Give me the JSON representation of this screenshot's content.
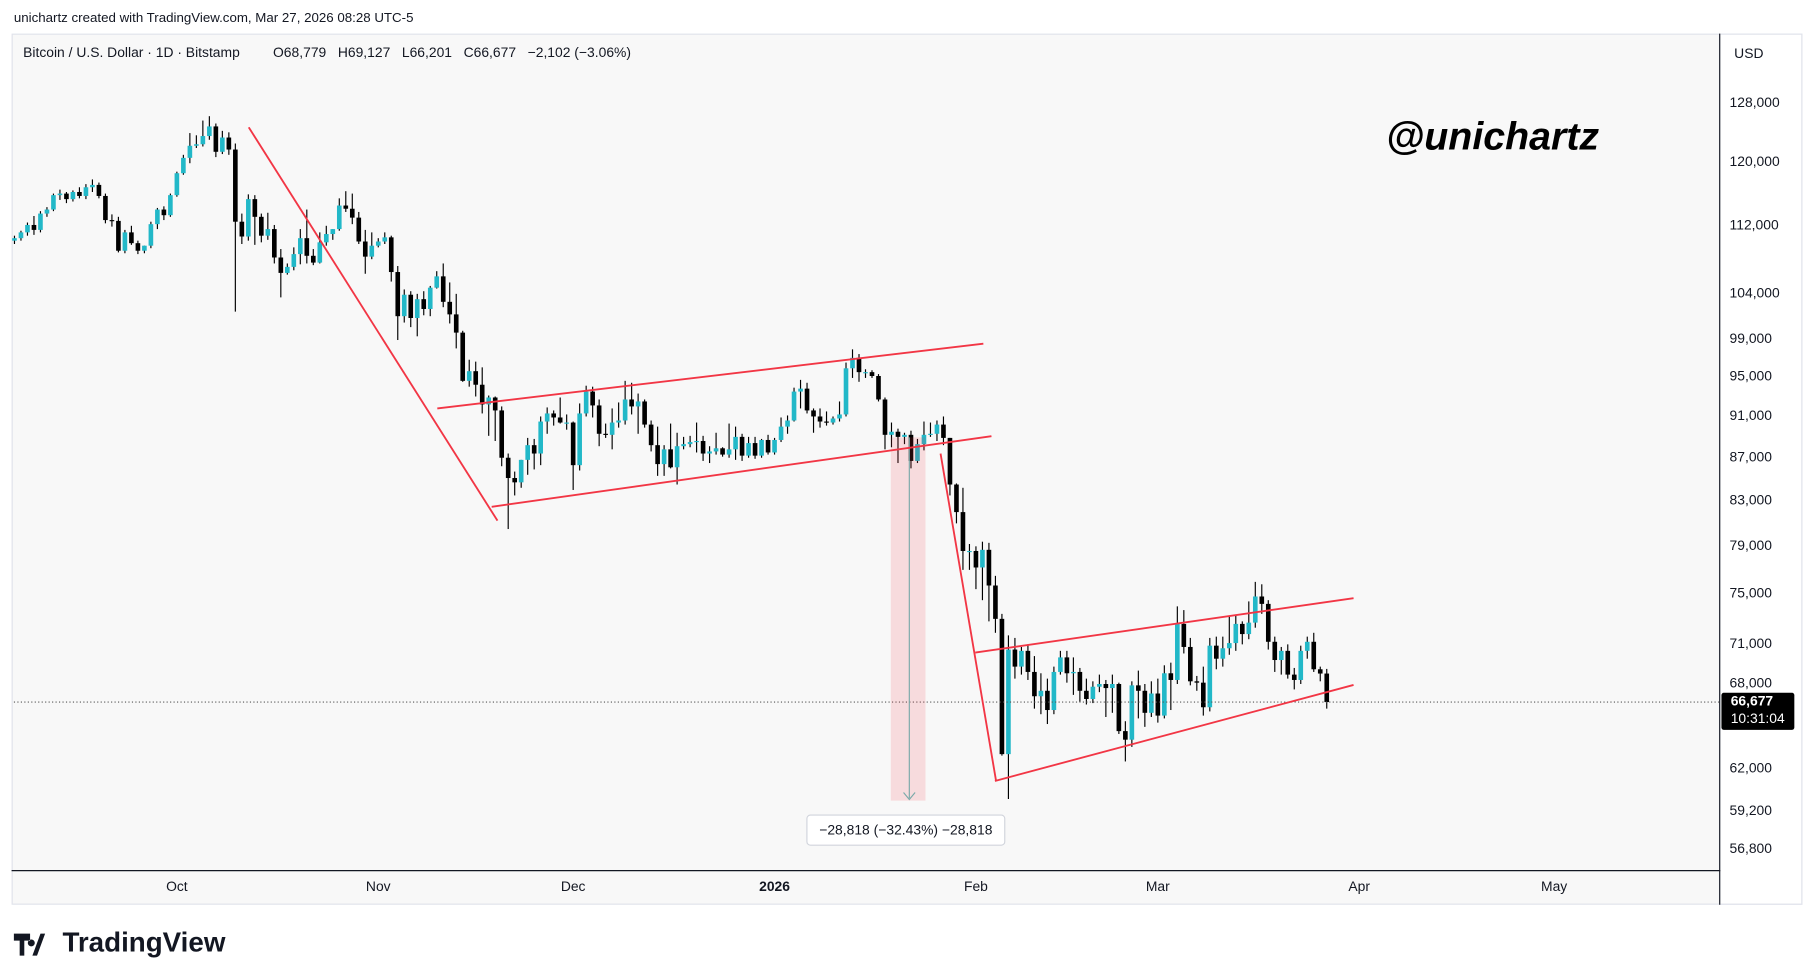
{
  "header": "unichartz created with TradingView.com, Mar 27, 2026 08:28 UTC-5",
  "brand": "TradingView",
  "chart_data": {
    "type": "candlestick",
    "symbol": "Bitcoin / U.S. Dollar · 1D · Bitstamp",
    "legend_values": [
      "O68,779",
      "H69,127",
      "L66,201",
      "C66,677",
      "−2,102 (−3.06%)"
    ],
    "currency": "USD",
    "watermark": "@unichartz",
    "measure_label": "−28,818 (−32.43%) −28,818",
    "last_price": {
      "value": 66677,
      "label": "66,677"
    },
    "countdown": "10:31:04",
    "up_color": "#22b8c8",
    "down_color": "#000000",
    "log_scale": true,
    "grid": false,
    "xlim": [
      -0.09,
      262.4
    ],
    "ylim": [
      55530,
      137900
    ],
    "yticks": [
      {
        "value": 128000,
        "label": "128,000"
      },
      {
        "value": 120000,
        "label": "120,000"
      },
      {
        "value": 112000,
        "label": "112,000"
      },
      {
        "value": 104000,
        "label": "104,000"
      },
      {
        "value": 99000,
        "label": "99,000"
      },
      {
        "value": 95000,
        "label": "95,000"
      },
      {
        "value": 91000,
        "label": "91,000"
      },
      {
        "value": 87000,
        "label": "87,000"
      },
      {
        "value": 83000,
        "label": "83,000"
      },
      {
        "value": 79000,
        "label": "79,000"
      },
      {
        "value": 75000,
        "label": "75,000"
      },
      {
        "value": 71000,
        "label": "71,000"
      },
      {
        "value": 68000,
        "label": "68,000"
      },
      {
        "value": 62000,
        "label": "62,000"
      },
      {
        "value": 59200,
        "label": "59,200"
      },
      {
        "value": 56800,
        "label": "56,800"
      }
    ],
    "xticks": [
      {
        "value": 25,
        "label": "Oct"
      },
      {
        "value": 56,
        "label": "Nov"
      },
      {
        "value": 86,
        "label": "Dec"
      },
      {
        "value": 117,
        "label": "2026"
      },
      {
        "value": 148,
        "label": "Feb"
      },
      {
        "value": 176,
        "label": "Mar"
      },
      {
        "value": 207,
        "label": "Apr"
      },
      {
        "value": 237,
        "label": "May"
      }
    ],
    "candles": [
      [
        110200,
        110800,
        109800,
        110500
      ],
      [
        110500,
        111400,
        110200,
        111200
      ],
      [
        111200,
        112400,
        110800,
        112100
      ],
      [
        112100,
        113200,
        110900,
        111500
      ],
      [
        111500,
        113800,
        111200,
        113500
      ],
      [
        113500,
        114300,
        113100,
        114000
      ],
      [
        114000,
        116000,
        113800,
        115800
      ],
      [
        115800,
        116500,
        115200,
        116000
      ],
      [
        116000,
        116200,
        114800,
        115300
      ],
      [
        115300,
        116400,
        115000,
        116200
      ],
      [
        116200,
        116800,
        115400,
        115700
      ],
      [
        115700,
        117200,
        115300,
        116800
      ],
      [
        116800,
        117800,
        116200,
        117100
      ],
      [
        117100,
        117400,
        115400,
        115700
      ],
      [
        115700,
        116000,
        112300,
        112700
      ],
      [
        112700,
        113400,
        111900,
        112600
      ],
      [
        112600,
        113100,
        108800,
        109000
      ],
      [
        109000,
        111500,
        108700,
        111200
      ],
      [
        111200,
        112000,
        109700,
        109900
      ],
      [
        109900,
        110200,
        108600,
        109000
      ],
      [
        109000,
        109600,
        108700,
        109600
      ],
      [
        109600,
        112500,
        109300,
        112200
      ],
      [
        112200,
        114200,
        111600,
        114000
      ],
      [
        114000,
        114400,
        112700,
        113300
      ],
      [
        113300,
        116000,
        113100,
        115800
      ],
      [
        115800,
        118800,
        115600,
        118600
      ],
      [
        118600,
        121000,
        118400,
        120600
      ],
      [
        120600,
        123900,
        119900,
        122200
      ],
      [
        122200,
        123600,
        121900,
        122400
      ],
      [
        122400,
        125600,
        122100,
        123500
      ],
      [
        123500,
        126200,
        123000,
        124800
      ],
      [
        124800,
        125200,
        120700,
        121400
      ],
      [
        121400,
        124200,
        121100,
        123300
      ],
      [
        123300,
        124000,
        121000,
        121700
      ],
      [
        121700,
        122500,
        102000,
        112500
      ],
      [
        112500,
        113500,
        109800,
        110700
      ],
      [
        110700,
        115900,
        110200,
        115300
      ],
      [
        115300,
        115800,
        109700,
        113100
      ],
      [
        113100,
        113500,
        110000,
        110800
      ],
      [
        110800,
        113600,
        110300,
        111600
      ],
      [
        111600,
        112100,
        107500,
        108200
      ],
      [
        108200,
        109200,
        103600,
        106400
      ],
      [
        106400,
        107500,
        106200,
        107100
      ],
      [
        107100,
        109400,
        106700,
        108600
      ],
      [
        108600,
        111600,
        107400,
        110500
      ],
      [
        110500,
        114000,
        107500,
        108400
      ],
      [
        108400,
        109200,
        107300,
        107600
      ],
      [
        107600,
        111200,
        107500,
        110000
      ],
      [
        110000,
        112000,
        109600,
        111000
      ],
      [
        111000,
        111600,
        110300,
        111600
      ],
      [
        111600,
        115400,
        111400,
        114500
      ],
      [
        114500,
        116300,
        113700,
        114100
      ],
      [
        114100,
        116000,
        112200,
        113000
      ],
      [
        113000,
        113700,
        109800,
        110100
      ],
      [
        110100,
        111500,
        106300,
        108300
      ],
      [
        108300,
        111200,
        108000,
        109600
      ],
      [
        109600,
        110500,
        109400,
        110100
      ],
      [
        110100,
        111200,
        109800,
        110600
      ],
      [
        110600,
        110800,
        105400,
        106500
      ],
      [
        106500,
        107200,
        98900,
        101500
      ],
      [
        101500,
        104500,
        100800,
        103900
      ],
      [
        103900,
        104300,
        100300,
        101300
      ],
      [
        101300,
        104000,
        99300,
        103400
      ],
      [
        103400,
        104300,
        101600,
        102300
      ],
      [
        102300,
        104900,
        101500,
        104700
      ],
      [
        104700,
        106600,
        104600,
        106000
      ],
      [
        106000,
        107500,
        102500,
        103100
      ],
      [
        103100,
        105300,
        100700,
        101700
      ],
      [
        101700,
        104000,
        98000,
        99700
      ],
      [
        99700,
        99900,
        94500,
        94600
      ],
      [
        94600,
        96800,
        94000,
        95600
      ],
      [
        95600,
        96600,
        93000,
        94200
      ],
      [
        94200,
        96000,
        91300,
        92200
      ],
      [
        92200,
        93100,
        89100,
        92900
      ],
      [
        92900,
        93000,
        88600,
        91600
      ],
      [
        91600,
        92000,
        86200,
        87000
      ],
      [
        87000,
        87400,
        80500,
        85100
      ],
      [
        85100,
        85700,
        83500,
        84700
      ],
      [
        84700,
        86800,
        84200,
        86800
      ],
      [
        86800,
        88900,
        85400,
        88200
      ],
      [
        88200,
        88800,
        85900,
        87400
      ],
      [
        87400,
        91000,
        86300,
        90500
      ],
      [
        90500,
        91900,
        89300,
        91300
      ],
      [
        91300,
        91600,
        90100,
        90900
      ],
      [
        90900,
        92900,
        90300,
        90400
      ],
      [
        90400,
        91200,
        89700,
        90400
      ],
      [
        90400,
        90500,
        84000,
        86300
      ],
      [
        86300,
        92300,
        85800,
        91300
      ],
      [
        91300,
        94100,
        91000,
        93500
      ],
      [
        93500,
        94000,
        90900,
        92100
      ],
      [
        92100,
        92700,
        88100,
        89300
      ],
      [
        89300,
        90300,
        88900,
        89200
      ],
      [
        89200,
        91800,
        87800,
        90400
      ],
      [
        90400,
        92400,
        89900,
        90600
      ],
      [
        90600,
        94600,
        90200,
        92700
      ],
      [
        92700,
        94400,
        91200,
        92000
      ],
      [
        92000,
        93300,
        89300,
        92500
      ],
      [
        92500,
        92700,
        89900,
        90200
      ],
      [
        90200,
        90600,
        87600,
        88200
      ],
      [
        88200,
        90000,
        85300,
        86400
      ],
      [
        86400,
        88200,
        85300,
        87800
      ],
      [
        87800,
        90300,
        86000,
        86100
      ],
      [
        86100,
        89400,
        84500,
        88100
      ],
      [
        88100,
        89000,
        87800,
        88300
      ],
      [
        88300,
        89100,
        88000,
        88500
      ],
      [
        88500,
        90400,
        87500,
        88600
      ],
      [
        88600,
        89100,
        86700,
        87400
      ],
      [
        87400,
        88100,
        86500,
        87600
      ],
      [
        87600,
        89400,
        87300,
        87900
      ],
      [
        87900,
        88000,
        87100,
        87300
      ],
      [
        87300,
        90300,
        87000,
        87800
      ],
      [
        87800,
        90000,
        86800,
        89000
      ],
      [
        89000,
        89300,
        86700,
        87200
      ],
      [
        87200,
        89000,
        87000,
        88400
      ],
      [
        88400,
        89000,
        86900,
        87200
      ],
      [
        87200,
        88800,
        87000,
        88700
      ],
      [
        88700,
        89200,
        87300,
        87500
      ],
      [
        87500,
        88900,
        87300,
        88700
      ],
      [
        88700,
        90900,
        88500,
        90000
      ],
      [
        90000,
        91100,
        89300,
        90600
      ],
      [
        90600,
        93900,
        90500,
        93500
      ],
      [
        93500,
        94700,
        91800,
        93800
      ],
      [
        93800,
        94400,
        91300,
        91600
      ],
      [
        91600,
        91800,
        89400,
        91000
      ],
      [
        91000,
        91800,
        89900,
        90500
      ],
      [
        90500,
        91500,
        90100,
        90400
      ],
      [
        90400,
        91000,
        90200,
        90800
      ],
      [
        90800,
        92500,
        90500,
        91200
      ],
      [
        91200,
        96500,
        91000,
        95900
      ],
      [
        95900,
        97900,
        94900,
        97000
      ],
      [
        97000,
        97400,
        94500,
        95500
      ],
      [
        95500,
        95800,
        94900,
        95500
      ],
      [
        95500,
        95700,
        94900,
        95100
      ],
      [
        95100,
        95300,
        92500,
        92700
      ],
      [
        92700,
        92900,
        87800,
        89200
      ],
      [
        89200,
        90400,
        88000,
        89500
      ],
      [
        89500,
        89800,
        86500,
        89000
      ],
      [
        89000,
        89400,
        88300,
        89200
      ],
      [
        89200,
        89600,
        86000,
        86700
      ],
      [
        86700,
        88800,
        86500,
        88300
      ],
      [
        88300,
        90500,
        87700,
        89200
      ],
      [
        89200,
        90400,
        89000,
        89300
      ],
      [
        89300,
        90600,
        88600,
        90200
      ],
      [
        90200,
        91000,
        88200,
        88900
      ],
      [
        88900,
        88900,
        83500,
        84500
      ],
      [
        84500,
        84600,
        81000,
        82000
      ],
      [
        82000,
        84200,
        77000,
        78600
      ],
      [
        78600,
        79200,
        77000,
        78600
      ],
      [
        78600,
        79000,
        75400,
        77200
      ],
      [
        77200,
        79400,
        74500,
        78700
      ],
      [
        78700,
        79300,
        72800,
        75700
      ],
      [
        75700,
        76500,
        71900,
        73000
      ],
      [
        73000,
        73400,
        62900,
        63000
      ],
      [
        63000,
        71700,
        60000,
        70600
      ],
      [
        70600,
        71500,
        68400,
        69300
      ],
      [
        69300,
        70800,
        68700,
        70500
      ],
      [
        70500,
        71000,
        68300,
        68900
      ],
      [
        68900,
        70100,
        66200,
        67100
      ],
      [
        67100,
        68800,
        65800,
        67500
      ],
      [
        67500,
        68400,
        65100,
        66100
      ],
      [
        66100,
        69300,
        65800,
        68900
      ],
      [
        68900,
        70500,
        68700,
        70000
      ],
      [
        70000,
        70500,
        68100,
        68800
      ],
      [
        68800,
        70000,
        67200,
        68900
      ],
      [
        68900,
        69200,
        66700,
        67500
      ],
      [
        67500,
        68400,
        66500,
        66900
      ],
      [
        66900,
        68200,
        66600,
        67800
      ],
      [
        67800,
        68700,
        67400,
        68000
      ],
      [
        68000,
        68300,
        65600,
        67700
      ],
      [
        67700,
        68700,
        65900,
        68000
      ],
      [
        68000,
        68100,
        64400,
        64600
      ],
      [
        64600,
        65300,
        62500,
        64000
      ],
      [
        64000,
        68200,
        63500,
        67900
      ],
      [
        67900,
        69000,
        65500,
        67500
      ],
      [
        67500,
        68000,
        64900,
        65900
      ],
      [
        65900,
        68200,
        65600,
        67300
      ],
      [
        67300,
        68400,
        65200,
        65700
      ],
      [
        65700,
        69400,
        65500,
        68800
      ],
      [
        68800,
        69600,
        66100,
        68300
      ],
      [
        68300,
        74000,
        68000,
        72600
      ],
      [
        72600,
        73700,
        70300,
        70800
      ],
      [
        70800,
        71500,
        67900,
        68200
      ],
      [
        68200,
        68600,
        67500,
        68100
      ],
      [
        68100,
        69300,
        65700,
        66300
      ],
      [
        66300,
        71500,
        66000,
        70900
      ],
      [
        70900,
        71600,
        69100,
        69900
      ],
      [
        69900,
        71600,
        69300,
        70700
      ],
      [
        70700,
        73200,
        70200,
        71100
      ],
      [
        71100,
        73300,
        70500,
        72600
      ],
      [
        72600,
        72800,
        71000,
        71800
      ],
      [
        71800,
        74400,
        71400,
        72700
      ],
      [
        72700,
        76000,
        72300,
        74800
      ],
      [
        74800,
        75800,
        73400,
        74200
      ],
      [
        74200,
        74500,
        70600,
        71200
      ],
      [
        71200,
        71600,
        68900,
        69800
      ],
      [
        69800,
        70800,
        68700,
        70500
      ],
      [
        70500,
        71000,
        68400,
        68700
      ],
      [
        68700,
        69200,
        67600,
        68300
      ],
      [
        68300,
        70900,
        68000,
        70500
      ],
      [
        70500,
        71600,
        69900,
        71200
      ],
      [
        71200,
        71900,
        68900,
        69100
      ],
      [
        69100,
        69300,
        68200,
        68779
      ],
      [
        68779,
        69127,
        66201,
        66677
      ]
    ]
  }
}
